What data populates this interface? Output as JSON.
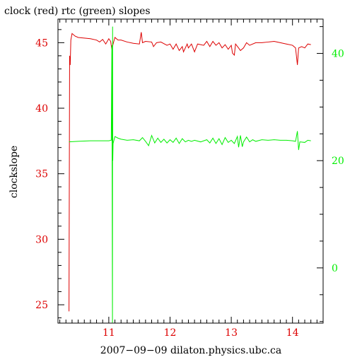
{
  "chart_data": {
    "type": "line",
    "title": "clock (red) rtc (green) slopes",
    "xlabel": "2007−09−09 dilaton.physics.ubc.ca",
    "ylabel": "clockslope",
    "xlim": [
      10.17,
      14.5
    ],
    "ylim_left": [
      23.6,
      46.8
    ],
    "ylim_right": [
      -10.3,
      46.4
    ],
    "x_ticks": [
      11,
      12,
      13,
      14
    ],
    "y_ticks_left": [
      25,
      30,
      35,
      40,
      45
    ],
    "y_ticks_right": [
      0,
      20,
      40
    ],
    "colors": {
      "clock": "#dd0000",
      "rtc": "#00ee00",
      "axis": "#000000"
    },
    "series": [
      {
        "name": "clock",
        "axis": "left",
        "points": [
          [
            10.35,
            24.5
          ],
          [
            10.36,
            44.0
          ],
          [
            10.37,
            43.3
          ],
          [
            10.38,
            45.2
          ],
          [
            10.4,
            45.7
          ],
          [
            10.45,
            45.5
          ],
          [
            10.5,
            45.4
          ],
          [
            10.6,
            45.35
          ],
          [
            10.7,
            45.3
          ],
          [
            10.8,
            45.2
          ],
          [
            10.85,
            45.05
          ],
          [
            10.9,
            45.25
          ],
          [
            10.95,
            44.9
          ],
          [
            11.0,
            45.3
          ],
          [
            11.03,
            45.1
          ],
          [
            11.05,
            44.5
          ],
          [
            11.07,
            44.9
          ],
          [
            11.1,
            45.4
          ],
          [
            11.15,
            45.2
          ],
          [
            11.2,
            45.2
          ],
          [
            11.3,
            45.05
          ],
          [
            11.4,
            44.95
          ],
          [
            11.5,
            44.9
          ],
          [
            11.53,
            45.8
          ],
          [
            11.55,
            45.0
          ],
          [
            11.6,
            45.1
          ],
          [
            11.7,
            45.05
          ],
          [
            11.73,
            44.7
          ],
          [
            11.78,
            45.0
          ],
          [
            11.85,
            45.05
          ],
          [
            11.95,
            44.8
          ],
          [
            12.0,
            44.9
          ],
          [
            12.05,
            44.5
          ],
          [
            12.1,
            44.9
          ],
          [
            12.15,
            44.4
          ],
          [
            12.2,
            44.7
          ],
          [
            12.22,
            44.3
          ],
          [
            12.28,
            44.9
          ],
          [
            12.3,
            44.6
          ],
          [
            12.35,
            44.9
          ],
          [
            12.4,
            44.3
          ],
          [
            12.45,
            44.9
          ],
          [
            12.55,
            44.8
          ],
          [
            12.6,
            45.1
          ],
          [
            12.65,
            44.7
          ],
          [
            12.7,
            45.1
          ],
          [
            12.75,
            44.8
          ],
          [
            12.8,
            45.0
          ],
          [
            12.85,
            44.6
          ],
          [
            12.9,
            44.85
          ],
          [
            12.95,
            44.5
          ],
          [
            13.0,
            44.8
          ],
          [
            13.02,
            44.2
          ],
          [
            13.05,
            44.05
          ],
          [
            13.07,
            44.9
          ],
          [
            13.12,
            44.6
          ],
          [
            13.15,
            44.4
          ],
          [
            13.2,
            44.6
          ],
          [
            13.25,
            45.0
          ],
          [
            13.3,
            44.8
          ],
          [
            13.4,
            45.0
          ],
          [
            13.5,
            45.0
          ],
          [
            13.6,
            45.05
          ],
          [
            13.7,
            45.1
          ],
          [
            13.8,
            45.0
          ],
          [
            13.9,
            44.9
          ],
          [
            14.0,
            44.8
          ],
          [
            14.05,
            44.6
          ],
          [
            14.08,
            43.3
          ],
          [
            14.1,
            44.6
          ],
          [
            14.15,
            44.7
          ],
          [
            14.2,
            44.6
          ],
          [
            14.25,
            44.9
          ],
          [
            14.3,
            44.85
          ]
        ]
      },
      {
        "name": "rtc",
        "axis": "right",
        "points": [
          [
            10.35,
            23.5
          ],
          [
            10.5,
            23.6
          ],
          [
            10.7,
            23.7
          ],
          [
            10.9,
            23.7
          ],
          [
            11.0,
            23.7
          ],
          [
            11.04,
            23.8
          ],
          [
            11.05,
            41.5
          ],
          [
            11.06,
            -10.2
          ],
          [
            11.062,
            45.0
          ],
          [
            11.065,
            20.0
          ],
          [
            11.07,
            23.2
          ],
          [
            11.1,
            24.5
          ],
          [
            11.15,
            24.2
          ],
          [
            11.2,
            24.0
          ],
          [
            11.3,
            23.8
          ],
          [
            11.4,
            23.9
          ],
          [
            11.5,
            23.7
          ],
          [
            11.55,
            24.3
          ],
          [
            11.6,
            23.6
          ],
          [
            11.65,
            22.8
          ],
          [
            11.7,
            24.7
          ],
          [
            11.75,
            23.3
          ],
          [
            11.8,
            24.2
          ],
          [
            11.85,
            23.4
          ],
          [
            11.9,
            24.0
          ],
          [
            11.95,
            23.3
          ],
          [
            12.0,
            23.9
          ],
          [
            12.05,
            23.4
          ],
          [
            12.1,
            24.2
          ],
          [
            12.15,
            23.2
          ],
          [
            12.2,
            24.1
          ],
          [
            12.25,
            23.5
          ],
          [
            12.3,
            23.8
          ],
          [
            12.35,
            23.6
          ],
          [
            12.4,
            23.8
          ],
          [
            12.5,
            23.5
          ],
          [
            12.6,
            23.9
          ],
          [
            12.65,
            23.3
          ],
          [
            12.7,
            24.2
          ],
          [
            12.75,
            23.2
          ],
          [
            12.8,
            24.1
          ],
          [
            12.85,
            23.0
          ],
          [
            12.9,
            24.3
          ],
          [
            12.95,
            23.4
          ],
          [
            13.0,
            23.8
          ],
          [
            13.05,
            23.2
          ],
          [
            13.1,
            24.5
          ],
          [
            13.12,
            22.5
          ],
          [
            13.15,
            24.7
          ],
          [
            13.18,
            22.6
          ],
          [
            13.2,
            23.5
          ],
          [
            13.25,
            24.4
          ],
          [
            13.3,
            23.5
          ],
          [
            13.35,
            23.9
          ],
          [
            13.4,
            23.6
          ],
          [
            13.5,
            23.9
          ],
          [
            13.6,
            23.8
          ],
          [
            13.7,
            23.9
          ],
          [
            13.8,
            23.8
          ],
          [
            13.9,
            23.8
          ],
          [
            14.0,
            23.7
          ],
          [
            14.05,
            23.6
          ],
          [
            14.08,
            25.5
          ],
          [
            14.1,
            22.0
          ],
          [
            14.12,
            23.5
          ],
          [
            14.2,
            23.4
          ],
          [
            14.25,
            23.8
          ],
          [
            14.3,
            23.7
          ]
        ]
      }
    ]
  }
}
